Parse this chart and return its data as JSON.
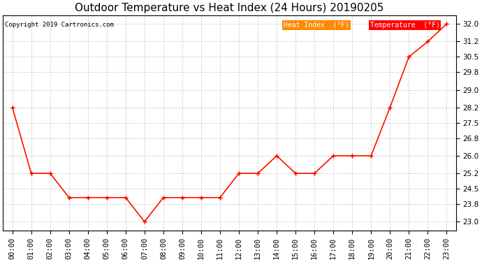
{
  "title": "Outdoor Temperature vs Heat Index (24 Hours) 20190205",
  "copyright": "Copyright 2019 Cartronics.com",
  "hours": [
    "00:00",
    "01:00",
    "02:00",
    "03:00",
    "04:00",
    "05:00",
    "06:00",
    "07:00",
    "08:00",
    "09:00",
    "10:00",
    "11:00",
    "12:00",
    "13:00",
    "14:00",
    "15:00",
    "16:00",
    "17:00",
    "18:00",
    "19:00",
    "20:00",
    "21:00",
    "22:00",
    "23:00"
  ],
  "temperature": [
    28.2,
    25.2,
    25.2,
    24.1,
    24.1,
    24.1,
    24.1,
    23.0,
    24.1,
    24.1,
    24.1,
    24.1,
    25.2,
    25.2,
    26.0,
    25.2,
    25.2,
    26.0,
    26.0,
    26.0,
    28.2,
    30.5,
    31.2,
    32.0
  ],
  "heat_index": [
    28.2,
    25.2,
    25.2,
    24.1,
    24.1,
    24.1,
    24.1,
    23.0,
    24.1,
    24.1,
    24.1,
    24.1,
    25.2,
    25.2,
    26.0,
    25.2,
    25.2,
    26.0,
    26.0,
    26.0,
    28.2,
    30.5,
    31.2,
    32.0
  ],
  "temp_color": "#ff0000",
  "heat_color": "#ff8800",
  "ylim": [
    22.6,
    32.4
  ],
  "yticks": [
    23.0,
    23.8,
    24.5,
    25.2,
    26.0,
    26.8,
    27.5,
    28.2,
    29.0,
    29.8,
    30.5,
    31.2,
    32.0
  ],
  "background_color": "#ffffff",
  "grid_color": "#c8c8c8",
  "title_fontsize": 11,
  "tick_fontsize": 7.5,
  "legend_heat_bg": "#ff8800",
  "legend_temp_bg": "#ff0000",
  "legend_text_color": "#ffffff",
  "legend_heat_label": "Heat Index  (°F)",
  "legend_temp_label": "Temperature  (°F)"
}
